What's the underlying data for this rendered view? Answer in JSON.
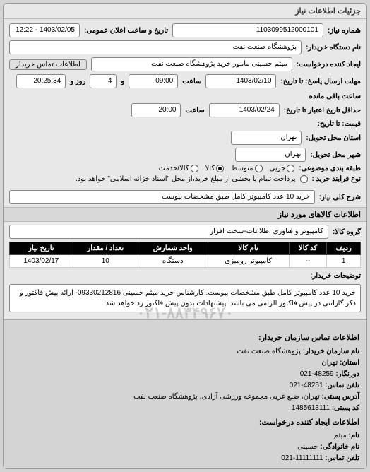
{
  "panel_title": "جزئیات اطلاعات نیاز",
  "fields": {
    "request_no_label": "شماره نیاز:",
    "request_no": "1103099512000101",
    "ann_date_label": "تاریخ و ساعت اعلان عمومی:",
    "ann_date": "1403/02/05 - 12:22",
    "org_label": "نام دستگاه خریدار:",
    "org": "پژوهشگاه صنعت نفت",
    "creator_label": "ایجاد کننده درخواست:",
    "creator": "میثم حسینی مامور خرید پژوهشگاه صنعت نفت",
    "contact_btn": "اطلاعات تماس خریدار",
    "deadline_reply_label": "مهلت ارسال پاسخ: تا تاریخ:",
    "deadline_reply_date": "1403/02/10",
    "time_label": "ساعت",
    "deadline_reply_time": "09:00",
    "and_label": "و",
    "days_remain": "4",
    "days_remain_label": "روز و",
    "time_remain": "20:25:34",
    "time_remain_label": "ساعت باقی مانده",
    "valid_until_label": "حداقل تاریخ اعتبار تا تاریخ:",
    "valid_until_date": "1403/02/24",
    "valid_until_time": "20:00",
    "price_label": "قیمت: تا تاریخ:",
    "delivery_province_label": "استان محل تحویل:",
    "delivery_province": "تهران",
    "delivery_city_label": "شهر محل تحویل:",
    "delivery_city": "تهران",
    "subject_cat_label": "طبقه بندی موضوعی:",
    "radio_small": "جزیی",
    "radio_med": "متوسط",
    "radio_all": "کالا",
    "radio_svc": "کالا/خدمت",
    "buy_process_label": "نوع فرایند خرید :",
    "buy_process_note": "پرداخت تمام یا بخشی از مبلغ خرید،از محل \"اسناد خزانه اسلامی\" خواهد بود.",
    "general_desc_label": "شرح کلی نیاز:",
    "general_desc": "خرید 10 عدد کامپیوتر کامل طبق مشخصات پیوست",
    "goods_section": "اطلاعات کالاهای مورد نیاز",
    "goods_group_label": "گروه کالا:",
    "goods_group": "کامپیوتر و فناوری اطلاعات-سخت افزار",
    "desc_label": "توضیحات خریدار:",
    "desc_text": "خرید 10 عدد کامپیوتر کامل طبق مشخصات پیوست. کارشناس خرید میثم حسینی 09330212816- ارائه پیش فاکتور و ذکر گارانتی در پیش فاکتور الزامی می باشد. پیشنهادات بدون پیش فاکتور رد خواهد شد."
  },
  "table": {
    "columns": [
      "ردیف",
      "کد کالا",
      "نام کالا",
      "واحد شمارش",
      "تعداد / مقدار",
      "تاریخ نیاز"
    ],
    "rows": [
      [
        "1",
        "--",
        "کامپیوتر رومیزی",
        "دستگاه",
        "10",
        "1403/02/17"
      ]
    ]
  },
  "contact": {
    "hdr1": "اطلاعات تماس سازمان خریدار:",
    "org_label": "نام سازمان خریدار:",
    "org": "پژوهشگاه صنعت نفت",
    "province_label": "استان:",
    "province": "تهران",
    "fax_label": "دورنگار:",
    "fax": "48259-021",
    "tel_label": "تلفن تماس:",
    "tel": "48251-021",
    "addr_label": "آدرس پستی:",
    "addr": "تهران، ضلع غربی مجموعه ورزشی آزادی، پژوهشگاه صنعت نفت",
    "zip_label": "کد پستی:",
    "zip": "1485613111",
    "hdr2": "اطلاعات ایجاد کننده درخواست:",
    "name_label": "نام:",
    "name": "میثم",
    "lname_label": "نام خانوادگی:",
    "lname": "حسینی",
    "tel2_label": "تلفن تماس:",
    "tel2": "11111111-021"
  },
  "watermark": "۰۲۱-۸۸۳۴۹۶۷۰"
}
